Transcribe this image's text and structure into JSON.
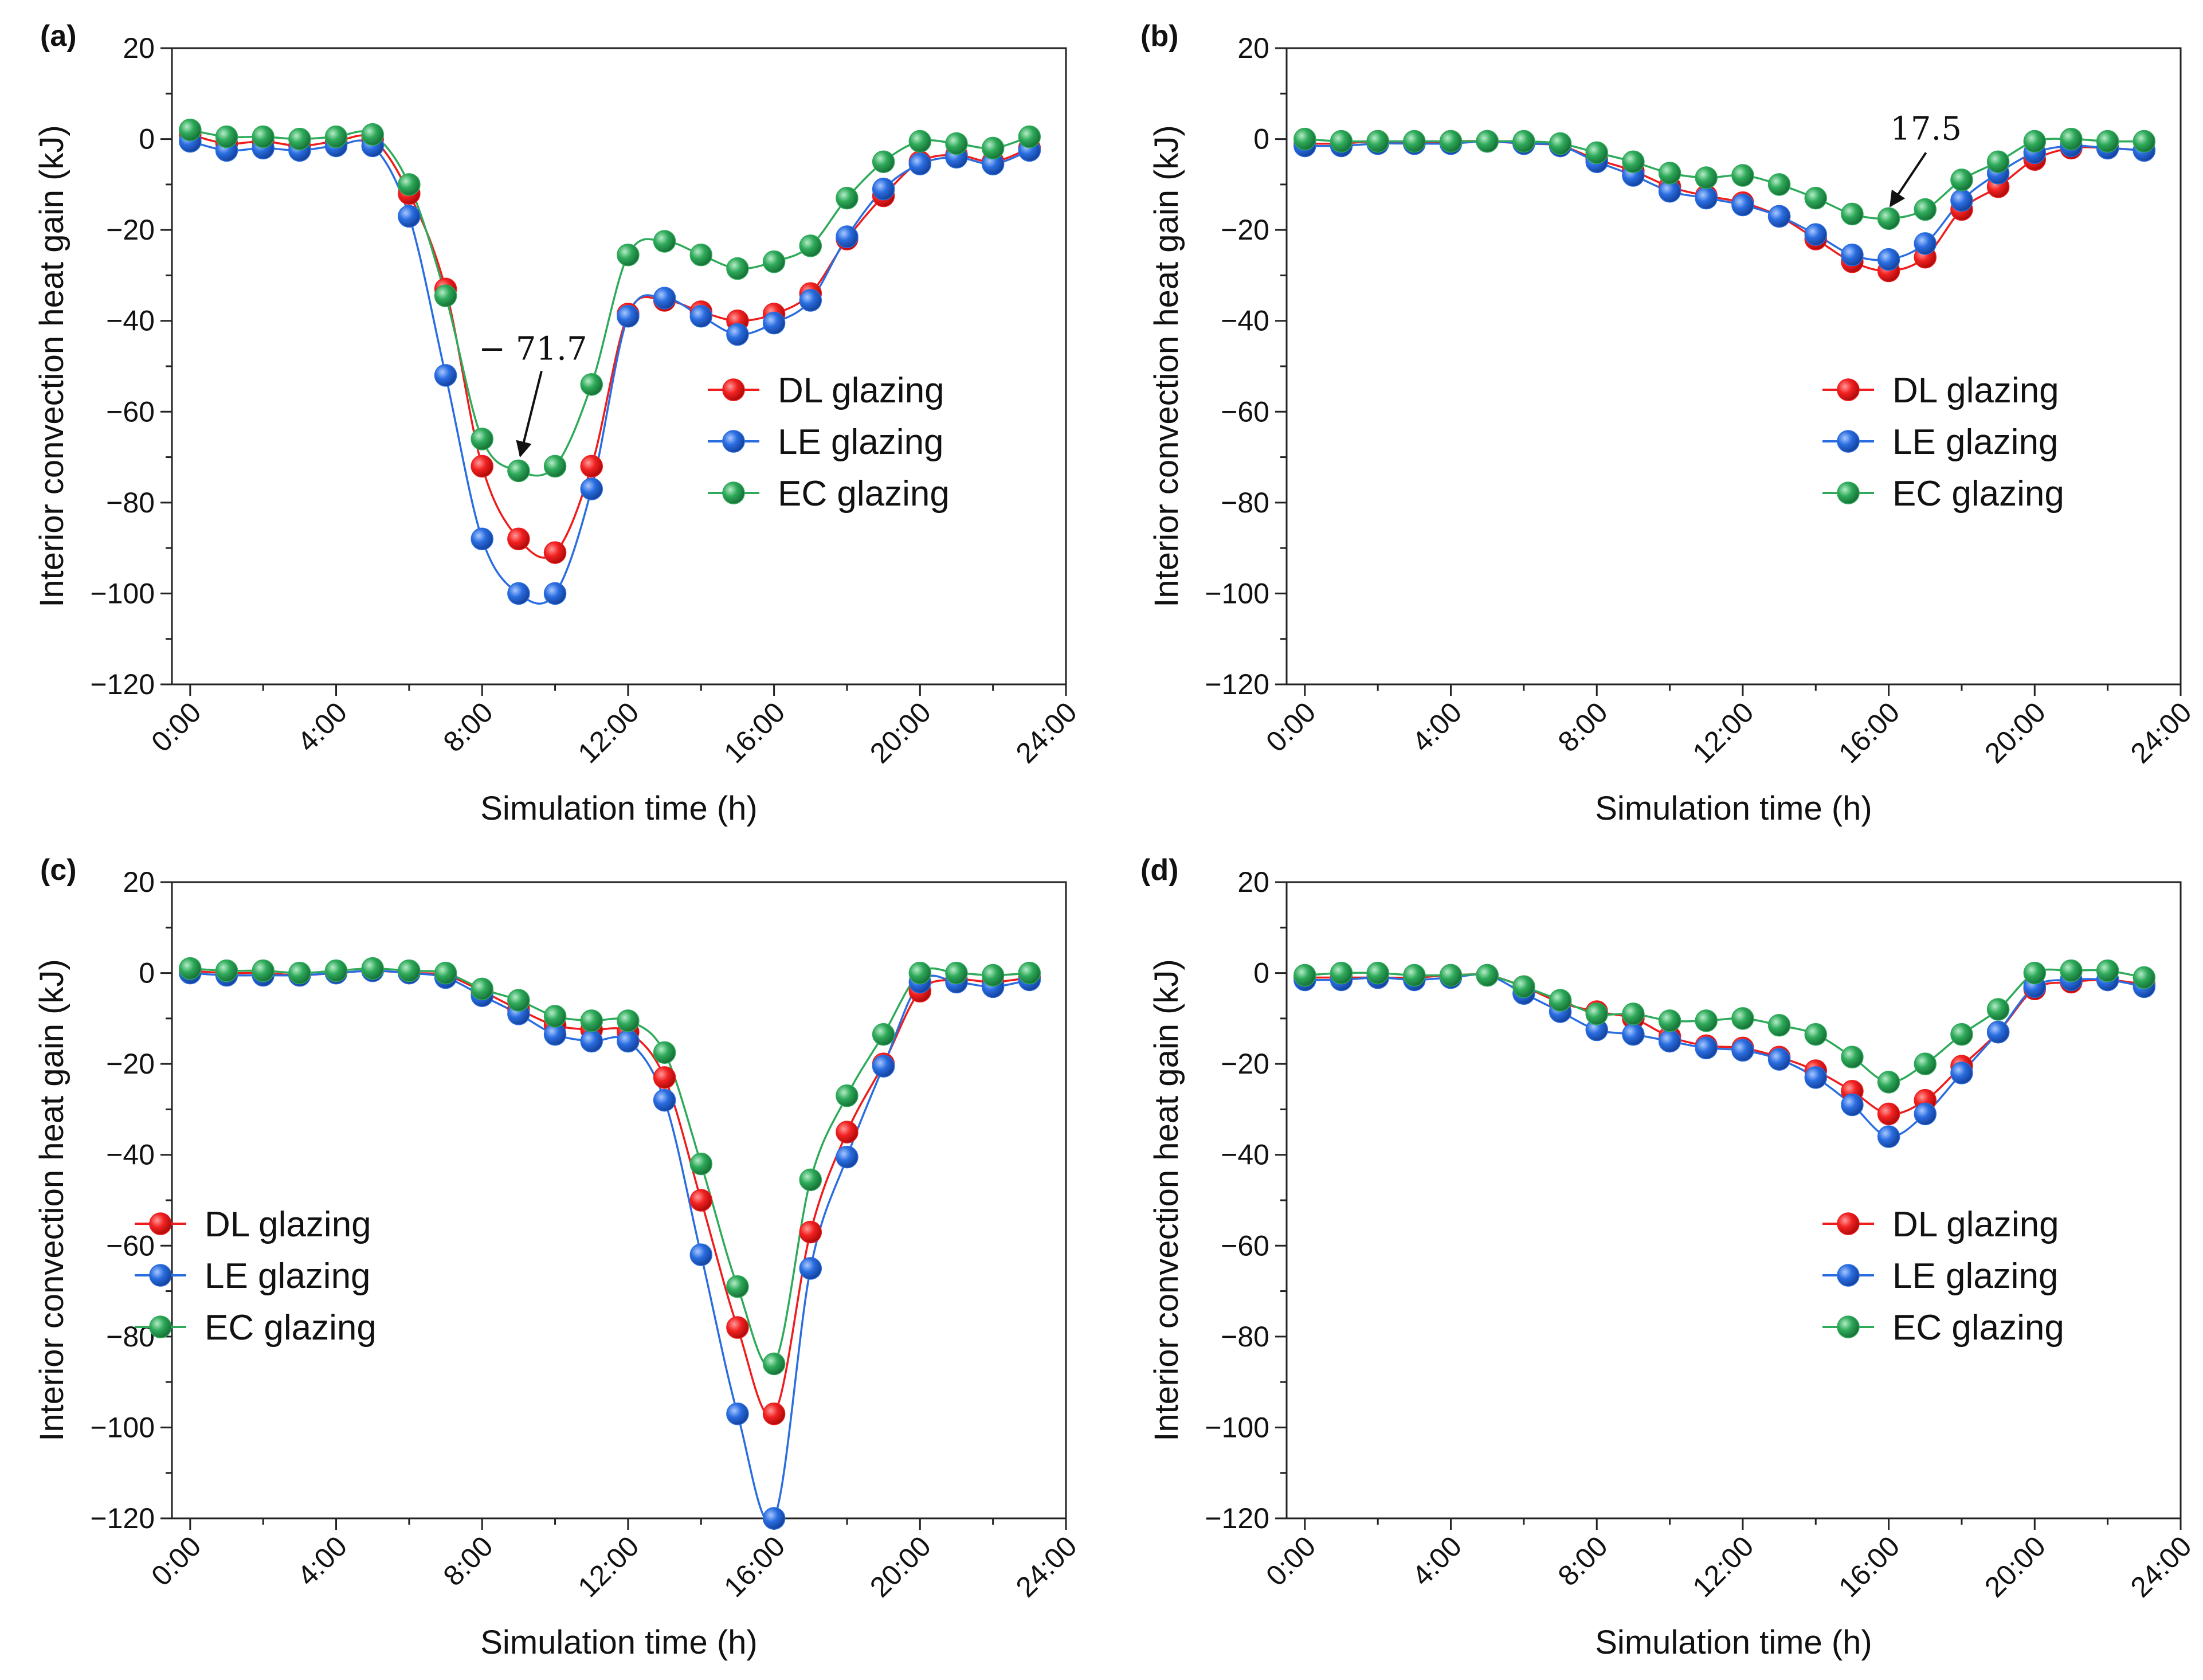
{
  "figure": {
    "colors": {
      "DL glazing": "#ee1c1c",
      "LE glazing": "#2a6de0",
      "EC glazing": "#2eaa5a"
    }
  },
  "chart_data": [
    {
      "type": "line",
      "panel": "(a)",
      "xlabel": "Simulation time (h)",
      "ylabel": "Interior convection heat gain (kJ)",
      "xlim": [
        -0.5,
        24
      ],
      "ylim": [
        -120,
        20
      ],
      "x_ticks": [
        0,
        4,
        8,
        12,
        16,
        20,
        24
      ],
      "x_tick_labels": [
        "0:00",
        "4:00",
        "8:00",
        "12:00",
        "16:00",
        "20:00",
        "24:00"
      ],
      "y_ticks": [
        20,
        0,
        -20,
        -40,
        -60,
        -80,
        -100,
        -120
      ],
      "y_tick_labels": [
        "20",
        "0",
        "−20",
        "−40",
        "−60",
        "−80",
        "−100",
        "−120"
      ],
      "legend": {
        "position": "right-middle",
        "entries": [
          "DL glazing",
          "LE glazing",
          "EC glazing"
        ]
      },
      "annotation": {
        "text": "− 71.7",
        "x": 9,
        "y": -72.5
      },
      "x": [
        0,
        1,
        2,
        3,
        4,
        5,
        6,
        7,
        8,
        9,
        10,
        11,
        12,
        13,
        14,
        15,
        16,
        17,
        18,
        19,
        20,
        21,
        22,
        23
      ],
      "series": [
        {
          "name": "DL glazing",
          "values": [
            1,
            -1,
            -0.5,
            -1.5,
            -0.5,
            0,
            -12,
            -33,
            -72,
            -88,
            -91,
            -72,
            -38.5,
            -35.5,
            -38,
            -40,
            -38.5,
            -34,
            -22,
            -12.5,
            -5,
            -3.5,
            -5,
            -2
          ]
        },
        {
          "name": "LE glazing",
          "values": [
            -0.5,
            -2.5,
            -2,
            -2.5,
            -1.5,
            -1.5,
            -17,
            -52,
            -88,
            -100,
            -100,
            -77,
            -39,
            -35,
            -39,
            -43,
            -40.5,
            -35.5,
            -21.5,
            -11,
            -5.5,
            -4,
            -5.5,
            -2.5
          ]
        },
        {
          "name": "EC glazing",
          "values": [
            2,
            0.5,
            0.5,
            0,
            0.5,
            1,
            -10,
            -34.5,
            -66,
            -73,
            -72,
            -54,
            -25.5,
            -22.5,
            -25.5,
            -28.5,
            -27,
            -23.5,
            -13,
            -5,
            -0.5,
            -1,
            -2,
            0.5
          ]
        }
      ]
    },
    {
      "type": "line",
      "panel": "(b)",
      "xlabel": "Simulation time (h)",
      "ylabel": "Interior convection heat gain (kJ)",
      "xlim": [
        -0.5,
        24
      ],
      "ylim": [
        -120,
        20
      ],
      "x_ticks": [
        0,
        4,
        8,
        12,
        16,
        20,
        24
      ],
      "x_tick_labels": [
        "0:00",
        "4:00",
        "8:00",
        "12:00",
        "16:00",
        "20:00",
        "24:00"
      ],
      "y_ticks": [
        20,
        0,
        -20,
        -40,
        -60,
        -80,
        -100,
        -120
      ],
      "y_tick_labels": [
        "20",
        "0",
        "−20",
        "−40",
        "−60",
        "−80",
        "−100",
        "−120"
      ],
      "legend": {
        "position": "bottom-right",
        "entries": [
          "DL glazing",
          "LE glazing",
          "EC glazing"
        ]
      },
      "annotation": {
        "text": "17.5",
        "x": 16,
        "y": -17.5
      },
      "x": [
        0,
        1,
        2,
        3,
        4,
        5,
        6,
        7,
        8,
        9,
        10,
        11,
        12,
        13,
        14,
        15,
        16,
        17,
        18,
        19,
        20,
        21,
        22,
        23
      ],
      "series": [
        {
          "name": "DL glazing",
          "values": [
            -1,
            -1,
            -0.5,
            -1,
            -0.5,
            -0.5,
            -1,
            -1.5,
            -4.5,
            -7,
            -10.5,
            -12.5,
            -14,
            -17,
            -22,
            -27,
            -29,
            -26,
            -15.5,
            -10.5,
            -4.5,
            -2,
            -2,
            -2.5
          ]
        },
        {
          "name": "LE glazing",
          "values": [
            -1.5,
            -1.5,
            -1,
            -1,
            -1,
            -0.5,
            -1,
            -1.5,
            -5,
            -8,
            -11.5,
            -13,
            -14.5,
            -17,
            -21,
            -25.5,
            -26.5,
            -23,
            -13.5,
            -7.5,
            -3,
            -1.5,
            -2,
            -2.5
          ]
        },
        {
          "name": "EC glazing",
          "values": [
            0,
            -0.5,
            -0.5,
            -0.5,
            -0.5,
            -0.5,
            -0.5,
            -1,
            -3,
            -5,
            -7.5,
            -8.5,
            -8,
            -10,
            -13,
            -16.5,
            -17.5,
            -15.5,
            -9,
            -5,
            -0.5,
            0,
            -0.5,
            -0.5
          ]
        }
      ]
    },
    {
      "type": "line",
      "panel": "(c)",
      "xlabel": "Simulation time (h)",
      "ylabel": "Interior convection heat gain (kJ)",
      "xlim": [
        -0.5,
        24
      ],
      "ylim": [
        -120,
        20
      ],
      "x_ticks": [
        0,
        4,
        8,
        12,
        16,
        20,
        24
      ],
      "x_tick_labels": [
        "0:00",
        "4:00",
        "8:00",
        "12:00",
        "16:00",
        "20:00",
        "24:00"
      ],
      "y_ticks": [
        20,
        0,
        -20,
        -40,
        -60,
        -80,
        -100,
        -120
      ],
      "y_tick_labels": [
        "20",
        "0",
        "−20",
        "−40",
        "−60",
        "−80",
        "−100",
        "−120"
      ],
      "legend": {
        "position": "left-middle",
        "entries": [
          "DL glazing",
          "LE glazing",
          "EC glazing"
        ]
      },
      "x": [
        0,
        1,
        2,
        3,
        4,
        5,
        6,
        7,
        8,
        9,
        10,
        11,
        12,
        13,
        14,
        15,
        16,
        17,
        18,
        19,
        20,
        21,
        22,
        23
      ],
      "series": [
        {
          "name": "DL glazing",
          "values": [
            0.5,
            0,
            0,
            -0.5,
            0,
            0.5,
            0,
            -0.5,
            -4,
            -8,
            -11.5,
            -12.5,
            -13,
            -23,
            -50,
            -78,
            -97,
            -57,
            -35,
            -20,
            -4,
            -1.5,
            -2,
            -1
          ]
        },
        {
          "name": "LE glazing",
          "values": [
            0,
            -0.5,
            -0.5,
            -0.5,
            0,
            0.5,
            0,
            -1,
            -5,
            -9,
            -13.5,
            -15,
            -15,
            -28,
            -62,
            -97,
            -120,
            -65,
            -40.5,
            -20.5,
            -2,
            -2,
            -3,
            -1.5
          ]
        },
        {
          "name": "EC glazing",
          "values": [
            1,
            0.5,
            0.5,
            0,
            0.5,
            1,
            0.5,
            0,
            -3.5,
            -6,
            -9.5,
            -10.5,
            -10.5,
            -17.5,
            -42,
            -69,
            -86,
            -45.5,
            -27,
            -13.5,
            0,
            0,
            -0.5,
            0
          ]
        }
      ]
    },
    {
      "type": "line",
      "panel": "(d)",
      "xlabel": "Simulation time (h)",
      "ylabel": "Interior convection heat gain (kJ)",
      "xlim": [
        -0.5,
        24
      ],
      "ylim": [
        -120,
        20
      ],
      "x_ticks": [
        0,
        4,
        8,
        12,
        16,
        20,
        24
      ],
      "x_tick_labels": [
        "0:00",
        "4:00",
        "8:00",
        "12:00",
        "16:00",
        "20:00",
        "24:00"
      ],
      "y_ticks": [
        20,
        0,
        -20,
        -40,
        -60,
        -80,
        -100,
        -120
      ],
      "y_tick_labels": [
        "20",
        "0",
        "−20",
        "−40",
        "−60",
        "−80",
        "−100",
        "−120"
      ],
      "legend": {
        "position": "bottom-right",
        "entries": [
          "DL glazing",
          "LE glazing",
          "EC glazing"
        ]
      },
      "x": [
        0,
        1,
        2,
        3,
        4,
        5,
        6,
        7,
        8,
        9,
        10,
        11,
        12,
        13,
        14,
        15,
        16,
        17,
        18,
        19,
        20,
        21,
        22,
        23
      ],
      "series": [
        {
          "name": "DL glazing",
          "values": [
            -1,
            -1,
            -1,
            -1,
            -0.5,
            -0.5,
            -3,
            -6.5,
            -8.5,
            -10,
            -14,
            -16,
            -16.5,
            -18.5,
            -21.5,
            -26,
            -31,
            -28,
            -20.5,
            -13,
            -3.5,
            -2,
            -1.5,
            -2.5
          ]
        },
        {
          "name": "LE glazing",
          "values": [
            -1.5,
            -1.5,
            -1,
            -1.5,
            -1,
            -0.5,
            -4.5,
            -8.5,
            -12.5,
            -13.5,
            -15,
            -16.5,
            -17,
            -19,
            -23,
            -29,
            -36,
            -31,
            -22,
            -13,
            -3,
            -1.5,
            -1.5,
            -3
          ]
        },
        {
          "name": "EC glazing",
          "values": [
            -0.5,
            0,
            0,
            -0.5,
            -0.5,
            -0.5,
            -3,
            -6,
            -9,
            -9,
            -10.5,
            -10.5,
            -10,
            -11.5,
            -13.5,
            -18.5,
            -24,
            -20,
            -13.5,
            -8,
            0,
            0.5,
            0.5,
            -1
          ]
        }
      ]
    }
  ]
}
